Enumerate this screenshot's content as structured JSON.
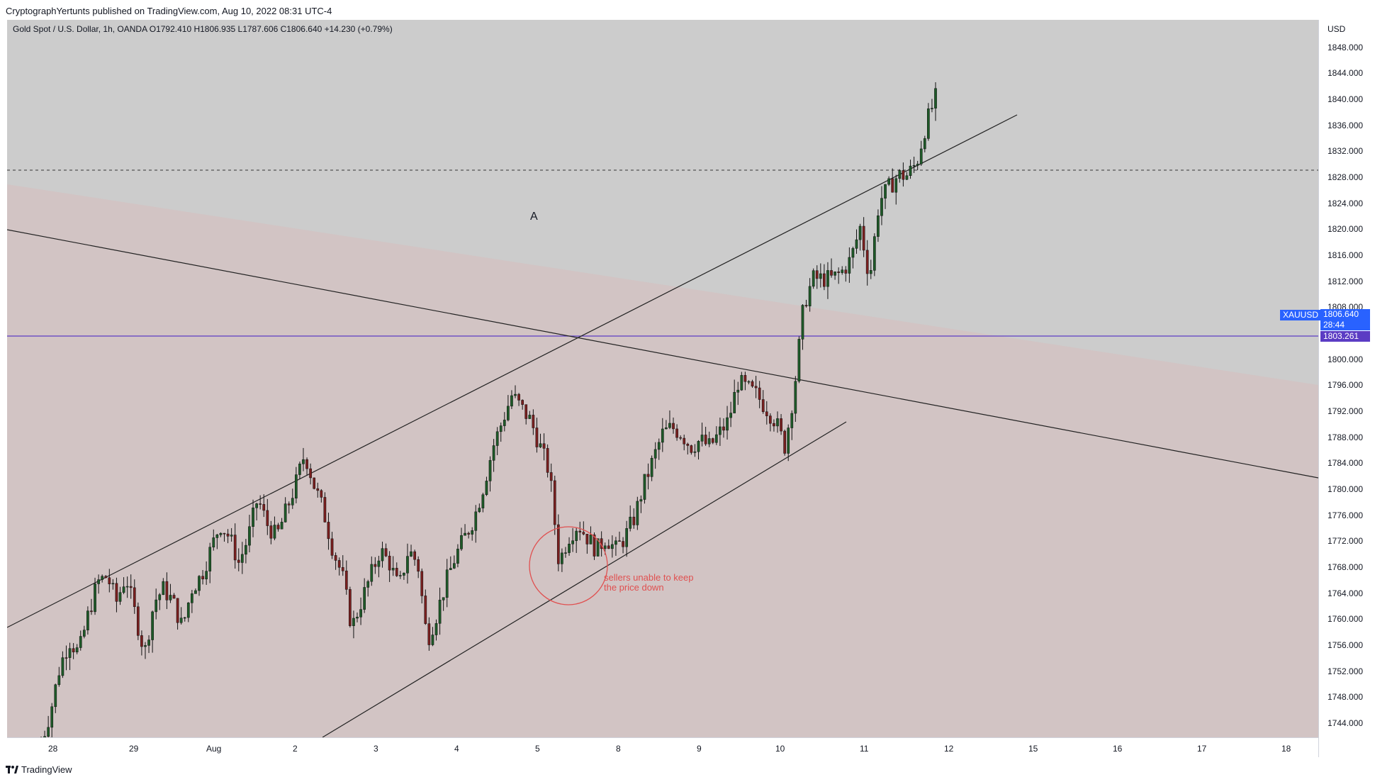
{
  "header": {
    "published": "CryptographYertunts published on TradingView.com, Aug 10, 2022 08:31 UTC-4"
  },
  "legend": {
    "text": "Gold Spot / U.S. Dollar, 1h, OANDA  O1792.410  H1806.935  L1787.606  C1806.640  +14.230 (+0.79%)"
  },
  "price_axis": {
    "unit": "USD",
    "ticks": [
      "1848.000",
      "1844.000",
      "1840.000",
      "1836.000",
      "1832.000",
      "1828.000",
      "1824.000",
      "1820.000",
      "1816.000",
      "1812.000",
      "1808.000",
      "1800.000",
      "1796.000",
      "1792.000",
      "1788.000",
      "1784.000",
      "1780.000",
      "1776.000",
      "1772.000",
      "1768.000",
      "1764.000",
      "1760.000",
      "1756.000",
      "1752.000",
      "1748.000",
      "1744.000"
    ]
  },
  "time_axis": {
    "ticks": [
      "28",
      "29",
      "Aug",
      "2",
      "3",
      "4",
      "5",
      "8",
      "9",
      "10",
      "11",
      "12",
      "15",
      "16",
      "17",
      "18"
    ]
  },
  "badges": {
    "symbol": "XAUUSD",
    "last_price": "1806.640",
    "countdown": "28:44",
    "line_price": "1803.261"
  },
  "annotations": {
    "label_a": "A",
    "note_line1": "sellers unable to keep",
    "note_line2": "the price down"
  },
  "colors": {
    "background": "#cccccc",
    "zone": "#d2c4c4",
    "up_candle": "#1e5a28",
    "down_candle": "#7a1f1f",
    "horizontal_line": "#5b3cc4",
    "badge_blue": "#2962ff",
    "annotation_red": "#e05050"
  },
  "footer": {
    "brand": "TradingView"
  },
  "chart_data": {
    "type": "candlestick",
    "symbol": "XAUUSD",
    "interval": "1h",
    "ylim": [
      1741,
      1851
    ],
    "horizontal_levels": [
      1803.261,
      1829
    ],
    "ohlc_last": {
      "o": 1792.41,
      "h": 1806.935,
      "l": 1787.606,
      "c": 1806.64
    },
    "path_anchors": [
      1740,
      1745,
      1752,
      1756,
      1754,
      1760,
      1765,
      1766,
      1762,
      1766,
      1760,
      1754,
      1762,
      1764,
      1762,
      1758,
      1764,
      1766,
      1770,
      1774,
      1772,
      1768,
      1772,
      1778,
      1774,
      1772,
      1776,
      1780,
      1785,
      1780,
      1776,
      1770,
      1766,
      1758,
      1762,
      1766,
      1770,
      1768,
      1764,
      1770,
      1768,
      1756,
      1760,
      1765,
      1769,
      1772,
      1775,
      1780,
      1786,
      1790,
      1794,
      1792,
      1790,
      1786,
      1782,
      1768,
      1772,
      1774,
      1772,
      1770,
      1772,
      1770,
      1772,
      1775,
      1780,
      1784,
      1788,
      1789,
      1788,
      1786,
      1787,
      1786,
      1788,
      1790,
      1796,
      1795,
      1794,
      1792,
      1790,
      1786,
      1795,
      1808,
      1812,
      1812,
      1812,
      1813,
      1815,
      1820,
      1812,
      1824,
      1826,
      1828,
      1828,
      1830,
      1836,
      1840
    ]
  }
}
